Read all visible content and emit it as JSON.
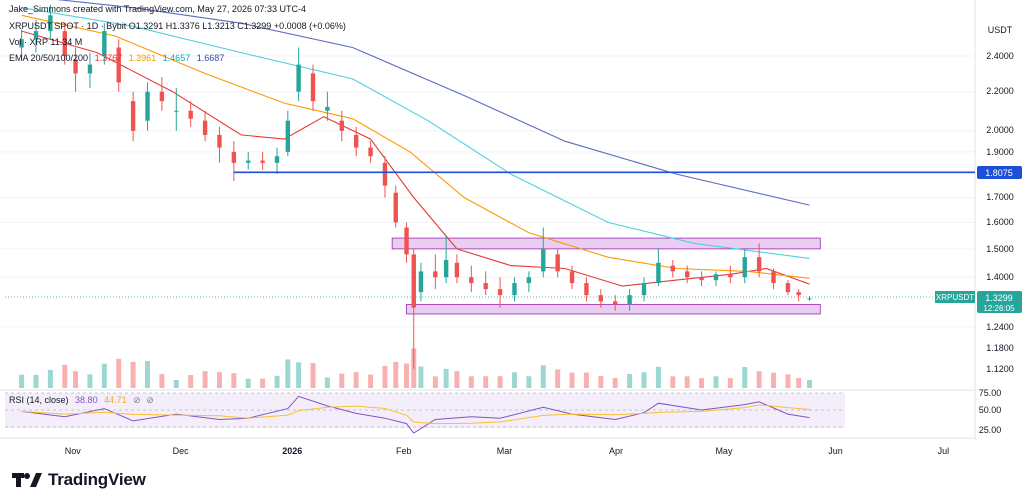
{
  "header": {
    "credit": "Jake_Simmons created with TradingView.com, May 27, 2026 07:33 UTC-4",
    "symbol_line": "XRPUSDT SPOT · 1D · Bybit  O1.3291  H1.3376  L1.3213  C1.3299  +0.0008 (+0.06%)",
    "volume_line": "Vol · XRP  11.34 M",
    "ema_line_label": "EMA 20/50/100/200",
    "ema_values": [
      "1.3767",
      "1.3961",
      "1.4657",
      "1.6687"
    ],
    "currency": "USDT"
  },
  "price_axis": {
    "labels": [
      "2.4000",
      "2.2000",
      "2.0000",
      "1.9000",
      "1.7000",
      "1.6000",
      "1.5000",
      "1.4000",
      "1.3299",
      "1.2400",
      "1.1800",
      "1.1200"
    ],
    "level_badge": "1.8075",
    "current_badge": {
      "symbol": "XRPUSDT",
      "price": "1.3299",
      "countdown": "12:26:05"
    }
  },
  "rsi": {
    "label": "RSI (14, close)",
    "value": "38.80",
    "ma_value": "44.71",
    "levels": [
      "75.00",
      "50.00",
      "25.00"
    ]
  },
  "time_axis": {
    "labels": [
      "Nov",
      "Dec",
      "2026",
      "Feb",
      "Mar",
      "Apr",
      "May",
      "Jun",
      "Jul"
    ]
  },
  "footer": {
    "brand": "TradingView"
  },
  "colors": {
    "up": "#26a69a",
    "down": "#ef5350",
    "ema20": "#e53935",
    "ema50": "#ff9800",
    "ema100": "#4dd0e1",
    "ema200": "#5c6bc0",
    "level": "#1e4fd8",
    "zone_fill": "#e6c6f0",
    "zone_stroke": "#9c27b0",
    "rsi": "#7e57c2",
    "rsi_ma": "#fbc02d"
  },
  "chart_data": {
    "type": "candlestick",
    "symbol": "XRPUSDT",
    "exchange": "Bybit",
    "interval": "1D",
    "time_range": [
      "2025-10-18",
      "2026-05-27"
    ],
    "price_scale": "log",
    "ylim": [
      1.08,
      2.8
    ],
    "series": [
      {
        "name": "EMA 20",
        "points": [
          [
            "2025-10-20",
            2.55
          ],
          [
            "2025-11-10",
            2.42
          ],
          [
            "2025-12-01",
            2.2
          ],
          [
            "2025-12-20",
            1.98
          ],
          [
            "2026-01-01",
            1.96
          ],
          [
            "2026-01-12",
            2.07
          ],
          [
            "2026-01-25",
            1.96
          ],
          [
            "2026-02-06",
            1.7
          ],
          [
            "2026-02-18",
            1.5
          ],
          [
            "2026-03-05",
            1.44
          ],
          [
            "2026-03-20",
            1.43
          ],
          [
            "2026-04-05",
            1.37
          ],
          [
            "2026-04-20",
            1.39
          ],
          [
            "2026-05-05",
            1.41
          ],
          [
            "2026-05-15",
            1.43
          ],
          [
            "2026-05-27",
            1.3767
          ]
        ]
      },
      {
        "name": "EMA 50",
        "points": [
          [
            "2025-10-20",
            2.65
          ],
          [
            "2025-11-15",
            2.52
          ],
          [
            "2025-12-10",
            2.3
          ],
          [
            "2026-01-01",
            2.14
          ],
          [
            "2026-01-20",
            2.06
          ],
          [
            "2026-02-05",
            1.9
          ],
          [
            "2026-02-20",
            1.7
          ],
          [
            "2026-03-10",
            1.56
          ],
          [
            "2026-04-01",
            1.47
          ],
          [
            "2026-04-20",
            1.43
          ],
          [
            "2026-05-10",
            1.42
          ],
          [
            "2026-05-27",
            1.3961
          ]
        ]
      },
      {
        "name": "EMA 100",
        "points": [
          [
            "2025-10-20",
            2.7
          ],
          [
            "2025-11-20",
            2.58
          ],
          [
            "2025-12-20",
            2.42
          ],
          [
            "2026-01-20",
            2.27
          ],
          [
            "2026-02-10",
            2.05
          ],
          [
            "2026-03-05",
            1.8
          ],
          [
            "2026-04-01",
            1.6
          ],
          [
            "2026-04-25",
            1.52
          ],
          [
            "2026-05-27",
            1.4657
          ]
        ]
      },
      {
        "name": "EMA 200",
        "points": [
          [
            "2025-10-20",
            2.78
          ],
          [
            "2025-11-20",
            2.7
          ],
          [
            "2025-12-20",
            2.6
          ],
          [
            "2026-01-20",
            2.45
          ],
          [
            "2026-02-20",
            2.18
          ],
          [
            "2026-03-20",
            1.95
          ],
          [
            "2026-04-20",
            1.8
          ],
          [
            "2026-05-27",
            1.6687
          ]
        ]
      }
    ],
    "candles": [
      [
        "2025-10-20",
        2.45,
        2.56,
        2.38,
        2.5
      ],
      [
        "2025-10-24",
        2.5,
        2.62,
        2.42,
        2.55
      ],
      [
        "2025-10-28",
        2.55,
        2.72,
        2.5,
        2.65
      ],
      [
        "2025-11-01",
        2.55,
        2.6,
        2.35,
        2.4
      ],
      [
        "2025-11-04",
        2.38,
        2.45,
        2.2,
        2.3
      ],
      [
        "2025-11-08",
        2.3,
        2.42,
        2.22,
        2.35
      ],
      [
        "2025-11-12",
        2.4,
        2.6,
        2.35,
        2.55
      ],
      [
        "2025-11-16",
        2.45,
        2.5,
        2.2,
        2.25
      ],
      [
        "2025-11-20",
        2.15,
        2.2,
        1.95,
        2.0
      ],
      [
        "2025-11-24",
        2.05,
        2.25,
        2.0,
        2.2
      ],
      [
        "2025-11-28",
        2.2,
        2.28,
        2.1,
        2.15
      ],
      [
        "2025-12-02",
        2.1,
        2.22,
        2.0,
        2.1
      ],
      [
        "2025-12-06",
        2.1,
        2.15,
        2.02,
        2.06
      ],
      [
        "2025-12-10",
        2.05,
        2.1,
        1.95,
        1.98
      ],
      [
        "2025-12-14",
        1.98,
        2.02,
        1.85,
        1.92
      ],
      [
        "2025-12-18",
        1.9,
        1.95,
        1.77,
        1.85
      ],
      [
        "2025-12-22",
        1.85,
        1.9,
        1.82,
        1.86
      ],
      [
        "2025-12-26",
        1.86,
        1.9,
        1.82,
        1.85
      ],
      [
        "2025-12-30",
        1.85,
        1.92,
        1.8,
        1.88
      ],
      [
        "2026-01-02",
        1.9,
        2.1,
        1.88,
        2.05
      ],
      [
        "2026-01-05",
        2.2,
        2.45,
        2.15,
        2.35
      ],
      [
        "2026-01-09",
        2.3,
        2.35,
        2.1,
        2.15
      ],
      [
        "2026-01-13",
        2.1,
        2.2,
        2.05,
        2.12
      ],
      [
        "2026-01-17",
        2.05,
        2.1,
        1.95,
        2.0
      ],
      [
        "2026-01-21",
        1.98,
        2.02,
        1.88,
        1.92
      ],
      [
        "2026-01-25",
        1.92,
        1.95,
        1.85,
        1.88
      ],
      [
        "2026-01-29",
        1.85,
        1.88,
        1.7,
        1.75
      ],
      [
        "2026-02-01",
        1.72,
        1.75,
        1.58,
        1.6
      ],
      [
        "2026-02-04",
        1.58,
        1.6,
        1.45,
        1.48
      ],
      [
        "2026-02-06",
        1.48,
        1.5,
        1.12,
        1.3
      ],
      [
        "2026-02-08",
        1.35,
        1.45,
        1.32,
        1.42
      ],
      [
        "2026-02-12",
        1.42,
        1.48,
        1.36,
        1.4
      ],
      [
        "2026-02-15",
        1.4,
        1.55,
        1.38,
        1.46
      ],
      [
        "2026-02-18",
        1.45,
        1.48,
        1.38,
        1.4
      ],
      [
        "2026-02-22",
        1.4,
        1.44,
        1.35,
        1.38
      ],
      [
        "2026-02-26",
        1.38,
        1.42,
        1.34,
        1.36
      ],
      [
        "2026-03-02",
        1.36,
        1.4,
        1.3,
        1.34
      ],
      [
        "2026-03-06",
        1.34,
        1.4,
        1.32,
        1.38
      ],
      [
        "2026-03-10",
        1.38,
        1.42,
        1.35,
        1.4
      ],
      [
        "2026-03-14",
        1.42,
        1.58,
        1.4,
        1.5
      ],
      [
        "2026-03-18",
        1.48,
        1.5,
        1.4,
        1.42
      ],
      [
        "2026-03-22",
        1.42,
        1.44,
        1.36,
        1.38
      ],
      [
        "2026-03-26",
        1.38,
        1.4,
        1.32,
        1.34
      ],
      [
        "2026-03-30",
        1.34,
        1.36,
        1.3,
        1.32
      ],
      [
        "2026-04-03",
        1.32,
        1.34,
        1.29,
        1.31
      ],
      [
        "2026-04-07",
        1.31,
        1.36,
        1.29,
        1.34
      ],
      [
        "2026-04-11",
        1.34,
        1.4,
        1.32,
        1.38
      ],
      [
        "2026-04-15",
        1.38,
        1.5,
        1.37,
        1.45
      ],
      [
        "2026-04-19",
        1.44,
        1.46,
        1.4,
        1.42
      ],
      [
        "2026-04-23",
        1.42,
        1.44,
        1.38,
        1.4
      ],
      [
        "2026-04-27",
        1.4,
        1.42,
        1.37,
        1.39
      ],
      [
        "2026-05-01",
        1.39,
        1.42,
        1.37,
        1.41
      ],
      [
        "2026-05-05",
        1.41,
        1.44,
        1.38,
        1.4
      ],
      [
        "2026-05-09",
        1.4,
        1.5,
        1.38,
        1.47
      ],
      [
        "2026-05-13",
        1.47,
        1.52,
        1.4,
        1.42
      ],
      [
        "2026-05-17",
        1.42,
        1.43,
        1.36,
        1.38
      ],
      [
        "2026-05-21",
        1.38,
        1.39,
        1.34,
        1.35
      ],
      [
        "2026-05-24",
        1.35,
        1.36,
        1.32,
        1.34
      ],
      [
        "2026-05-27",
        1.3291,
        1.3376,
        1.3213,
        1.3299
      ]
    ],
    "annotations": [
      {
        "type": "horizontal-line",
        "price": 1.8075,
        "from": "2025-12-18",
        "to": "extend-right"
      },
      {
        "type": "zone",
        "price_range": [
          1.5,
          1.54
        ],
        "from": "2026-01-31",
        "to": "2026-05-30"
      },
      {
        "type": "zone",
        "price_range": [
          1.28,
          1.31
        ],
        "from": "2026-02-04",
        "to": "2026-05-30"
      }
    ],
    "rsi_series": [
      [
        "2025-10-20",
        48
      ],
      [
        "2025-11-01",
        40
      ],
      [
        "2025-11-12",
        52
      ],
      [
        "2025-11-20",
        34
      ],
      [
        "2025-12-02",
        44
      ],
      [
        "2025-12-14",
        36
      ],
      [
        "2025-12-22",
        38
      ],
      [
        "2026-01-02",
        52
      ],
      [
        "2026-01-05",
        70
      ],
      [
        "2026-01-13",
        56
      ],
      [
        "2026-01-21",
        45
      ],
      [
        "2026-01-29",
        38
      ],
      [
        "2026-02-04",
        30
      ],
      [
        "2026-02-06",
        16
      ],
      [
        "2026-02-12",
        36
      ],
      [
        "2026-02-22",
        40
      ],
      [
        "2026-03-02",
        38
      ],
      [
        "2026-03-14",
        54
      ],
      [
        "2026-03-22",
        44
      ],
      [
        "2026-04-03",
        36
      ],
      [
        "2026-04-11",
        46
      ],
      [
        "2026-04-15",
        60
      ],
      [
        "2026-04-27",
        50
      ],
      [
        "2026-05-09",
        58
      ],
      [
        "2026-05-13",
        62
      ],
      [
        "2026-05-21",
        44
      ],
      [
        "2026-05-27",
        38.8
      ]
    ]
  }
}
